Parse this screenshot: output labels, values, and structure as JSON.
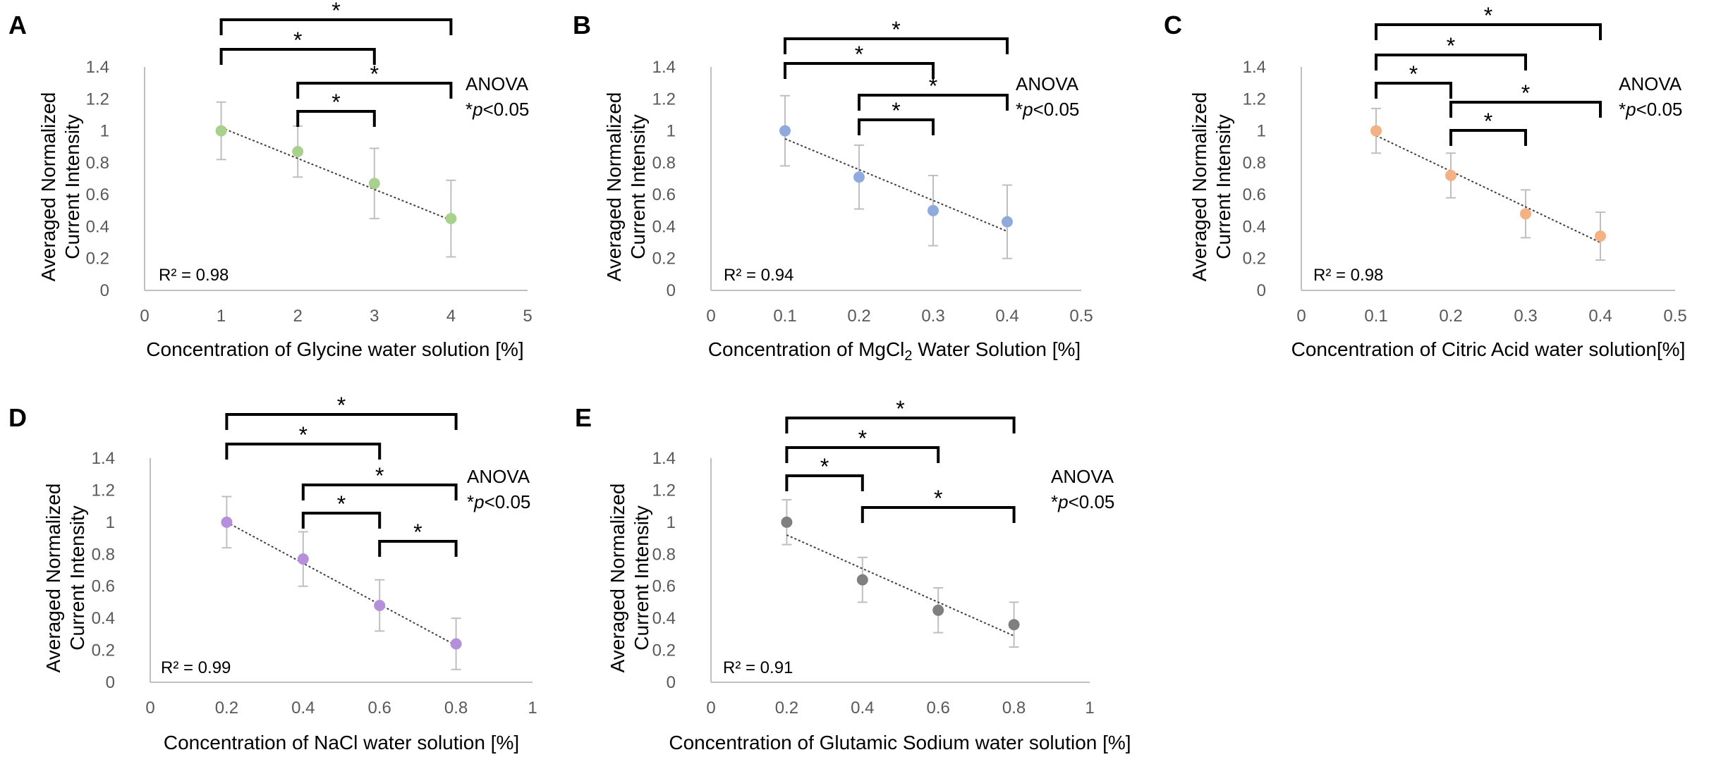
{
  "chart_data": [
    {
      "id": "A",
      "type": "scatter",
      "panel_label": "A",
      "xlabel": "Concentration of Glycine water solution [%]",
      "ylabel": [
        "Averaged Normalized",
        "Current Intensity"
      ],
      "xlim": [
        0,
        5
      ],
      "ylim": [
        0,
        1.4
      ],
      "xticks": [
        "0",
        "1",
        "2",
        "3",
        "4",
        "5"
      ],
      "yticks": [
        "0",
        "0.2",
        "0.4",
        "0.6",
        "0.8",
        "1",
        "1.2",
        "1.4"
      ],
      "color": "#a9d18e",
      "x": [
        1,
        2,
        3,
        4
      ],
      "y": [
        1.0,
        0.87,
        0.67,
        0.45
      ],
      "err": [
        0.18,
        0.16,
        0.22,
        0.24
      ],
      "trend": {
        "x1": 1,
        "y1": 1.02,
        "x2": 4,
        "y2": 0.44
      },
      "r2": "R² = 0.98",
      "anova": "ANOVA",
      "p_prefix": "*",
      "p_italic": "p",
      "p_suffix": "<0.05",
      "brackets": [
        {
          "x1": 1,
          "x2": 4,
          "label": "*"
        },
        {
          "x1": 1,
          "x2": 3,
          "label": "*"
        },
        {
          "x1": 2,
          "x2": 4,
          "label": "*"
        },
        {
          "x1": 2,
          "x2": 3,
          "label": "*"
        }
      ]
    },
    {
      "id": "B",
      "type": "scatter",
      "panel_label": "B",
      "xlabel_pre": "Concentration of MgCl",
      "xlabel_sub": "2",
      "xlabel_post": " Water Solution [%]",
      "ylabel": [
        "Averaged Normalized",
        "Current Intensity"
      ],
      "xlim": [
        0,
        0.5
      ],
      "ylim": [
        0,
        1.4
      ],
      "xticks": [
        "0",
        "0.1",
        "0.2",
        "0.3",
        "0.4",
        "0.5"
      ],
      "yticks": [
        "0",
        "0.2",
        "0.4",
        "0.6",
        "0.8",
        "1",
        "1.2",
        "1.4"
      ],
      "color": "#8faadc",
      "x": [
        0.1,
        0.2,
        0.3,
        0.4
      ],
      "y": [
        1.0,
        0.71,
        0.5,
        0.43
      ],
      "err": [
        0.22,
        0.2,
        0.22,
        0.23
      ],
      "trend": {
        "x1": 0.1,
        "y1": 0.95,
        "x2": 0.4,
        "y2": 0.37
      },
      "r2": "R² = 0.94",
      "anova": "ANOVA",
      "p_prefix": "*",
      "p_italic": "p",
      "p_suffix": "<0.05",
      "brackets": [
        {
          "x1": 0.1,
          "x2": 0.4,
          "label": "*"
        },
        {
          "x1": 0.1,
          "x2": 0.3,
          "label": "*"
        },
        {
          "x1": 0.2,
          "x2": 0.4,
          "label": "*"
        },
        {
          "x1": 0.2,
          "x2": 0.3,
          "label": "*"
        }
      ]
    },
    {
      "id": "C",
      "type": "scatter",
      "panel_label": "C",
      "xlabel": "Concentration of Citric Acid water solution[%]",
      "ylabel": [
        "Averaged Normalized",
        "Current Intensity"
      ],
      "xlim": [
        0,
        0.5
      ],
      "ylim": [
        0,
        1.4
      ],
      "xticks": [
        "0",
        "0.1",
        "0.2",
        "0.3",
        "0.4",
        "0.5"
      ],
      "yticks": [
        "0",
        "0.2",
        "0.4",
        "0.6",
        "0.8",
        "1",
        "1.2",
        "1.4"
      ],
      "color": "#f4b183",
      "x": [
        0.1,
        0.2,
        0.3,
        0.4
      ],
      "y": [
        1.0,
        0.72,
        0.48,
        0.34
      ],
      "err": [
        0.14,
        0.14,
        0.15,
        0.15
      ],
      "trend": {
        "x1": 0.1,
        "y1": 0.97,
        "x2": 0.4,
        "y2": 0.3
      },
      "r2": "R² = 0.98",
      "anova": "ANOVA",
      "p_prefix": "*",
      "p_italic": "p",
      "p_suffix": "<0.05",
      "brackets": [
        {
          "x1": 0.1,
          "x2": 0.4,
          "label": "*"
        },
        {
          "x1": 0.1,
          "x2": 0.3,
          "label": "*"
        },
        {
          "x1": 0.1,
          "x2": 0.2,
          "label": "*"
        },
        {
          "x1": 0.2,
          "x2": 0.4,
          "label": "*"
        },
        {
          "x1": 0.2,
          "x2": 0.3,
          "label": "*"
        }
      ]
    },
    {
      "id": "D",
      "type": "scatter",
      "panel_label": "D",
      "xlabel": "Concentration of NaCl water solution [%]",
      "ylabel": [
        "Averaged Normalized",
        "Current Intensity"
      ],
      "xlim": [
        0,
        1
      ],
      "ylim": [
        0,
        1.4
      ],
      "xticks": [
        "0",
        "0.2",
        "0.4",
        "0.6",
        "0.8",
        "1"
      ],
      "yticks": [
        "0",
        "0.2",
        "0.4",
        "0.6",
        "0.8",
        "1",
        "1.2",
        "1.4"
      ],
      "color": "#b48fdc",
      "x": [
        0.2,
        0.4,
        0.6,
        0.8
      ],
      "y": [
        1.0,
        0.77,
        0.48,
        0.24
      ],
      "err": [
        0.16,
        0.17,
        0.16,
        0.16
      ],
      "trend": {
        "x1": 0.2,
        "y1": 1.0,
        "x2": 0.8,
        "y2": 0.23
      },
      "r2": "R² = 0.99",
      "anova": "ANOVA",
      "p_prefix": "*",
      "p_italic": "p",
      "p_suffix": "<0.05",
      "brackets": [
        {
          "x1": 0.2,
          "x2": 0.8,
          "label": "*"
        },
        {
          "x1": 0.2,
          "x2": 0.6,
          "label": "*"
        },
        {
          "x1": 0.4,
          "x2": 0.8,
          "label": "*"
        },
        {
          "x1": 0.4,
          "x2": 0.6,
          "label": "*"
        },
        {
          "x1": 0.6,
          "x2": 0.8,
          "label": "*"
        }
      ]
    },
    {
      "id": "E",
      "type": "scatter",
      "panel_label": "E",
      "xlabel": "Concentration of Glutamic Sodium water solution [%]",
      "ylabel": [
        "Averaged Normalized",
        "Current Intensity"
      ],
      "xlim": [
        0,
        1
      ],
      "ylim": [
        0,
        1.4
      ],
      "xticks": [
        "0",
        "0.2",
        "0.4",
        "0.6",
        "0.8",
        "1"
      ],
      "yticks": [
        "0",
        "0.2",
        "0.4",
        "0.6",
        "0.8",
        "1",
        "1.2",
        "1.4"
      ],
      "color": "#7f7f7f",
      "x": [
        0.2,
        0.4,
        0.6,
        0.8
      ],
      "y": [
        1.0,
        0.64,
        0.45,
        0.36
      ],
      "err": [
        0.14,
        0.14,
        0.14,
        0.14
      ],
      "trend": {
        "x1": 0.2,
        "y1": 0.92,
        "x2": 0.8,
        "y2": 0.29
      },
      "r2": "R² = 0.91",
      "anova": "ANOVA",
      "p_prefix": "*",
      "p_italic": "p",
      "p_suffix": "<0.05",
      "brackets": [
        {
          "x1": 0.2,
          "x2": 0.8,
          "label": "*"
        },
        {
          "x1": 0.2,
          "x2": 0.6,
          "label": "*"
        },
        {
          "x1": 0.2,
          "x2": 0.4,
          "label": "*"
        },
        {
          "x1": 0.4,
          "x2": 0.8,
          "label": "*"
        }
      ]
    }
  ]
}
